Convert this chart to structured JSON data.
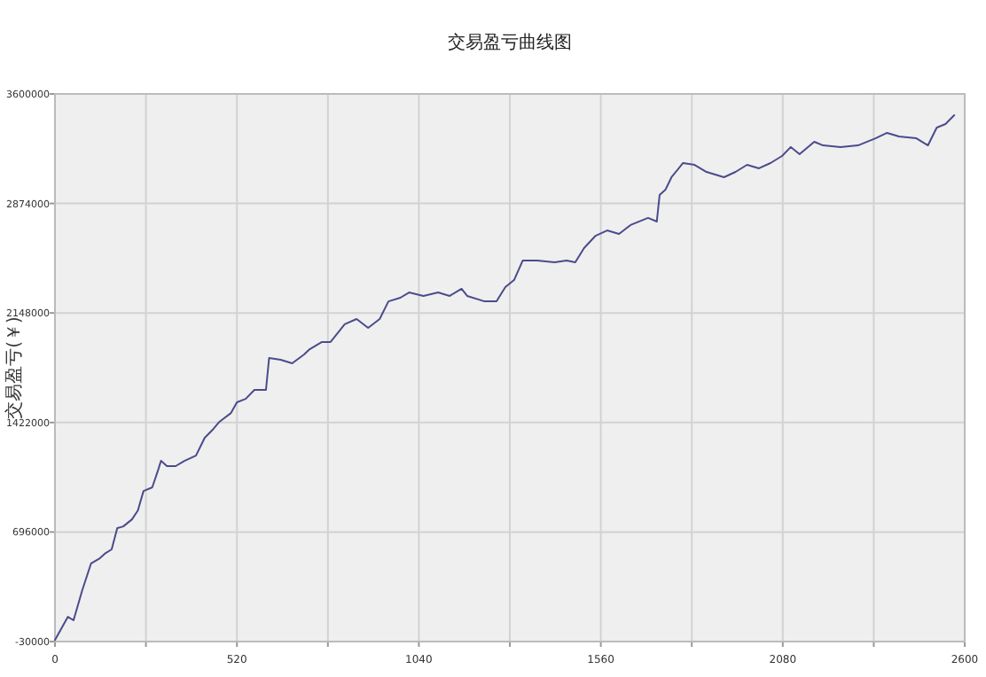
{
  "chart_data": {
    "type": "line",
    "title": "交易盈亏曲线图",
    "ylabel": "交易盈亏(￥)",
    "x": [
      0,
      37,
      53,
      78,
      103,
      128,
      145,
      162,
      178,
      195,
      220,
      237,
      253,
      278,
      295,
      303,
      320,
      345,
      370,
      403,
      428,
      453,
      470,
      503,
      520,
      545,
      570,
      603,
      612,
      645,
      678,
      712,
      728,
      762,
      787,
      812,
      828,
      862,
      895,
      928,
      953,
      987,
      1012,
      1053,
      1095,
      1128,
      1162,
      1178,
      1228,
      1262,
      1287,
      1312,
      1337,
      1378,
      1428,
      1462,
      1487,
      1512,
      1545,
      1578,
      1612,
      1645,
      1695,
      1720,
      1728,
      1745,
      1762,
      1795,
      1828,
      1862,
      1912,
      1945,
      1978,
      2012,
      2045,
      2078,
      2103,
      2128,
      2170,
      2195,
      2245,
      2295,
      2345,
      2378,
      2412,
      2462,
      2495,
      2520,
      2545,
      2570
    ],
    "series": [
      {
        "color": "#4b4b8c",
        "values": [
          -20000,
          134000,
          111000,
          311000,
          487000,
          522000,
          557000,
          581000,
          722000,
          733000,
          780000,
          839000,
          968000,
          992000,
          1109000,
          1168000,
          1133000,
          1133000,
          1168000,
          1203000,
          1321000,
          1380000,
          1427000,
          1485000,
          1556000,
          1579000,
          1638000,
          1638000,
          1850000,
          1838000,
          1814000,
          1873000,
          1908000,
          1955000,
          1955000,
          2026000,
          2073000,
          2108000,
          2049000,
          2108000,
          2225000,
          2249000,
          2284000,
          2261000,
          2284000,
          2261000,
          2308000,
          2261000,
          2225000,
          2225000,
          2319000,
          2366000,
          2496000,
          2496000,
          2484000,
          2496000,
          2484000,
          2578000,
          2660000,
          2695000,
          2672000,
          2731000,
          2778000,
          2754000,
          2930000,
          2966000,
          3048000,
          3142000,
          3130000,
          3083000,
          3048000,
          3083000,
          3130000,
          3107000,
          3142000,
          3189000,
          3248000,
          3201000,
          3283000,
          3259000,
          3248000,
          3259000,
          3306000,
          3342000,
          3318000,
          3306000,
          3259000,
          3377000,
          3400000,
          3459000
        ]
      }
    ],
    "xlim": [
      0,
      2600
    ],
    "xticks": [
      0,
      {
        "value": 260,
        "label": null
      },
      520,
      {
        "value": 780,
        "label": null
      },
      1040,
      {
        "value": 1300,
        "label": null
      },
      1560,
      {
        "value": 1820,
        "label": null
      },
      2080,
      {
        "value": 2340,
        "label": null
      },
      2600
    ],
    "ylim": [
      -30000,
      3600000
    ],
    "yticks": [
      -30000,
      696000,
      1422000,
      2148000,
      2874000,
      3600000
    ],
    "grid": true,
    "marker": "none",
    "line_style": "solid"
  }
}
